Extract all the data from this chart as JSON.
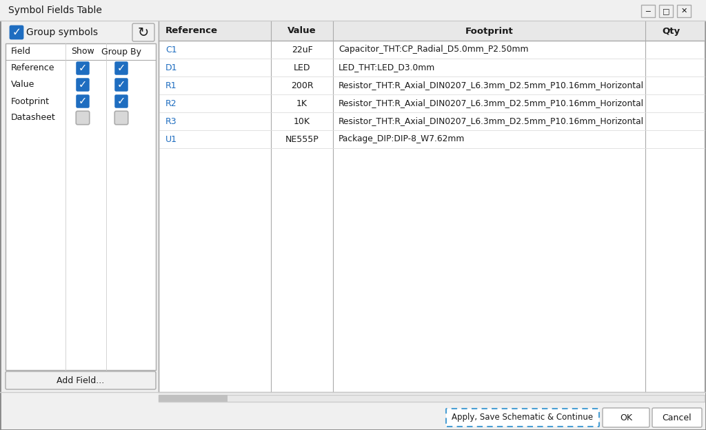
{
  "title": "Symbol Fields Table",
  "dialog_bg": "#f0f0f0",
  "white": "#ffffff",
  "border_color": "#aaaaaa",
  "header_bg": "#e8e8e8",
  "blue_check": "#1e6dc0",
  "text_color": "#1a1a1a",
  "blue_text": "#1e6dc0",
  "table_headers": [
    "Reference",
    "Value",
    "Footprint",
    "Qty"
  ],
  "table_rows": [
    [
      "C1",
      "22uF",
      "Capacitor_THT:CP_Radial_D5.0mm_P2.50mm",
      ""
    ],
    [
      "D1",
      "LED",
      "LED_THT:LED_D3.0mm",
      ""
    ],
    [
      "R1",
      "200R",
      "Resistor_THT:R_Axial_DIN0207_L6.3mm_D2.5mm_P10.16mm_Horizontal",
      ""
    ],
    [
      "R2",
      "1K",
      "Resistor_THT:R_Axial_DIN0207_L6.3mm_D2.5mm_P10.16mm_Horizontal",
      ""
    ],
    [
      "R3",
      "10K",
      "Resistor_THT:R_Axial_DIN0207_L6.3mm_D2.5mm_P10.16mm_Horizontal",
      ""
    ],
    [
      "U1",
      "NE555P",
      "Package_DIP:DIP-8_W7.62mm",
      ""
    ]
  ],
  "left_fields": [
    "Reference",
    "Value",
    "Footprint",
    "Datasheet"
  ],
  "left_checked_show": [
    true,
    true,
    true,
    false
  ],
  "left_checked_groupby": [
    true,
    true,
    true,
    false
  ],
  "button_apply": "Apply, Save Schematic & Continue",
  "button_ok": "OK",
  "button_cancel": "Cancel"
}
